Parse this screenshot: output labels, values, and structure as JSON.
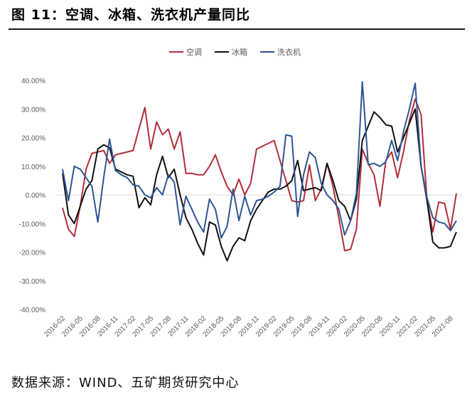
{
  "figure": {
    "title": "图 11：空调、冰箱、洗衣机产量同比",
    "source": "数据来源：WIND、五矿期货研究中心"
  },
  "chart_data": {
    "type": "line",
    "legend_position": "top-center",
    "grid": false,
    "ylim": [
      -40,
      40
    ],
    "y_ticks": [
      "40.00%",
      "30.00%",
      "20.00%",
      "10.00%",
      "0.00%",
      "-10.00%",
      "-20.00%",
      "-30.00%",
      "-40.00%"
    ],
    "y_tick_values": [
      40,
      30,
      20,
      10,
      0,
      -10,
      -20,
      -30,
      -40
    ],
    "x_tick_labels": [
      "2016-02",
      "2016-05",
      "2016-08",
      "2016-11",
      "2017-02",
      "2017-05",
      "2017-08",
      "2017-11",
      "2018-02",
      "2018-05",
      "2018-08",
      "2018-11",
      "2019-02",
      "2019-05",
      "2019-08",
      "2019-11",
      "2020-02",
      "2020-05",
      "2020-08",
      "2020-11",
      "2021-02",
      "2021-05",
      "2021-08"
    ],
    "x_start": "2016-02",
    "x_end": "2021-10",
    "series": [
      {
        "name": "空调",
        "color": "#b22e3a",
        "values": [
          -4.5,
          -12,
          -14.5,
          -4,
          9,
          14.5,
          15,
          15.5,
          11,
          14,
          14.5,
          15,
          15.5,
          23,
          30.5,
          16,
          25.5,
          21,
          23,
          16,
          22,
          7.5,
          7.5,
          7,
          7,
          10,
          14,
          8,
          3,
          0,
          5.5,
          0,
          4,
          16,
          17,
          18,
          19,
          12,
          5,
          -2,
          -2.5,
          -2,
          10.5,
          -2,
          2,
          11,
          3,
          -8,
          -19.5,
          -19,
          -12,
          16,
          11,
          7,
          -4,
          12,
          15,
          6,
          15,
          26,
          33.5,
          28,
          -2,
          -13,
          -2.5,
          -3,
          -12,
          0.5
        ]
      },
      {
        "name": "冰箱",
        "color": "#111111",
        "values": [
          7.5,
          -7,
          -10,
          -4,
          2,
          5,
          16,
          17.5,
          16.5,
          9,
          8,
          7,
          6.5,
          -4.5,
          -1,
          -3.5,
          7,
          13.5,
          6,
          9,
          0,
          -8,
          -12,
          -17,
          -21,
          -9.5,
          -10.5,
          -18,
          -23,
          -18,
          -15,
          -16,
          -9,
          -5,
          -2,
          1,
          2,
          2,
          3,
          5,
          12,
          1.5,
          2,
          2.5,
          1.5,
          11,
          5,
          -2,
          -4,
          -9,
          -1.5,
          19,
          24,
          29,
          27,
          24.5,
          24,
          15,
          20,
          25,
          30,
          10,
          -2,
          -16.5,
          -18.5,
          -18.5,
          -18,
          -13
        ]
      },
      {
        "name": "洗衣机",
        "color": "#2e5596",
        "values": [
          9,
          -2,
          10,
          9,
          6,
          3,
          -9.5,
          6,
          19.5,
          8.5,
          7,
          6,
          3.5,
          3,
          0,
          -1,
          2.5,
          0,
          7,
          4.5,
          -10.5,
          -0.5,
          -5,
          -9.5,
          -13,
          -1.5,
          -5,
          -15,
          -11,
          2,
          -9,
          -0.5,
          -7,
          -2,
          -1.5,
          -0.5,
          1,
          3,
          21,
          20.5,
          -7.5,
          7,
          15,
          13,
          4,
          0,
          -2,
          -5,
          -14,
          -9,
          0.5,
          39.5,
          10.5,
          11,
          10,
          11.5,
          19,
          12,
          22,
          30,
          39,
          10,
          -1,
          -8,
          -9.5,
          -10,
          -12.5,
          -9
        ]
      }
    ]
  }
}
